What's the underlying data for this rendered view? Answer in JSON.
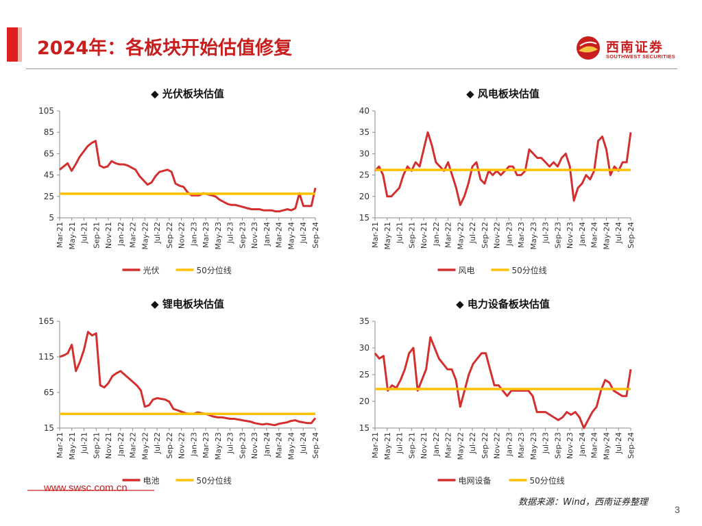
{
  "header": {
    "title": "2024年：各板块开始估值修复",
    "logo_name": "西南证券",
    "logo_sub": "SOUTHWEST SECURITIES"
  },
  "footer": {
    "url": "www.swsc.com.cn",
    "source": "数据来源：Wind，西南证券整理",
    "page": "3"
  },
  "colors": {
    "series": "#d32f2f",
    "median": "#ffc000",
    "title_red": "#c81e1e"
  },
  "chart_data": [
    {
      "type": "line",
      "title": "◆ 光伏板块估值",
      "ylim": [
        5,
        105
      ],
      "yticks": [
        5,
        25,
        45,
        65,
        85,
        105
      ],
      "xticks": [
        "Mar-21",
        "May-21",
        "Jul-21",
        "Sep-21",
        "Nov-21",
        "Jan-22",
        "Mar-22",
        "May-22",
        "Jul-22",
        "Sep-22",
        "Nov-22",
        "Jan-23",
        "Mar-23",
        "May-23",
        "Jul-23",
        "Sep-23",
        "Nov-23",
        "Jan-24",
        "Mar-24",
        "May-24",
        "Jul-24",
        "Sep-24"
      ],
      "series": [
        {
          "name": "光伏",
          "values": [
            50,
            53,
            56,
            49,
            55,
            62,
            67,
            72,
            75,
            77,
            54,
            52,
            53,
            58,
            56,
            55,
            55,
            54,
            52,
            50,
            44,
            40,
            36,
            38,
            44,
            48,
            49,
            50,
            48,
            37,
            35,
            34,
            29,
            26,
            26,
            26,
            28,
            27,
            26,
            25,
            22,
            20,
            18,
            17,
            17,
            16,
            15,
            14,
            13,
            13,
            13,
            12,
            12,
            12,
            11,
            11,
            12,
            13,
            12,
            14,
            28,
            16,
            16,
            16,
            33
          ]
        },
        {
          "name": "50分位线",
          "values": [
            27.5,
            27.5
          ]
        }
      ]
    },
    {
      "type": "line",
      "title": "◆ 风电板块估值",
      "ylim": [
        15,
        40
      ],
      "yticks": [
        15,
        20,
        25,
        30,
        35,
        40
      ],
      "xticks": [
        "Mar-21",
        "May-21",
        "Jul-21",
        "Sep-21",
        "Nov-21",
        "Jan-22",
        "Mar-22",
        "May-22",
        "Jul-22",
        "Sep-22",
        "Nov-22",
        "Jan-23",
        "Mar-23",
        "May-23",
        "Jul-23",
        "Sep-23",
        "Nov-23",
        "Jan-24",
        "Mar-24",
        "May-24",
        "Jul-24",
        "Sep-24"
      ],
      "series": [
        {
          "name": "风电",
          "values": [
            26,
            27,
            25,
            20,
            20,
            21,
            22,
            25,
            27,
            26,
            28,
            27,
            31,
            35,
            32,
            28,
            27,
            26,
            28,
            25,
            22,
            18,
            20,
            23,
            27,
            28,
            24,
            23,
            26,
            25,
            26,
            25,
            26,
            27,
            27,
            25,
            25,
            26,
            31,
            30,
            29,
            29,
            28,
            27,
            28,
            27,
            29,
            30,
            27,
            19,
            22,
            23,
            25,
            24,
            26,
            33,
            34,
            31,
            25,
            27,
            26,
            28,
            28,
            35
          ]
        },
        {
          "name": "50分位线",
          "values": [
            26.2,
            26.2
          ]
        }
      ]
    },
    {
      "type": "line",
      "title": "◆ 锂电板块估值",
      "ylim": [
        15,
        165
      ],
      "yticks": [
        15,
        65,
        115,
        165
      ],
      "xticks": [
        "Mar-21",
        "May-21",
        "Jul-21",
        "Sep-21",
        "Nov-21",
        "Jan-22",
        "Mar-22",
        "May-22",
        "Jul-22",
        "Sep-22",
        "Nov-22",
        "Jan-23",
        "Mar-23",
        "May-23",
        "Jul-23",
        "Sep-23",
        "Nov-23",
        "Jan-24",
        "Mar-24",
        "May-24",
        "Jul-24",
        "Sep-24"
      ],
      "series": [
        {
          "name": "电池",
          "values": [
            115,
            117,
            120,
            132,
            95,
            108,
            125,
            150,
            145,
            148,
            75,
            72,
            78,
            88,
            92,
            95,
            90,
            85,
            80,
            75,
            68,
            45,
            47,
            55,
            57,
            56,
            55,
            52,
            42,
            40,
            38,
            36,
            35,
            35,
            37,
            36,
            35,
            33,
            31,
            30,
            30,
            29,
            28,
            28,
            27,
            26,
            25,
            24,
            22,
            21,
            20,
            21,
            20,
            19,
            21,
            22,
            23,
            25,
            26,
            24,
            23,
            22,
            22,
            29
          ]
        },
        {
          "name": "50分位线",
          "values": [
            35,
            35
          ]
        }
      ]
    },
    {
      "type": "line",
      "title": "◆ 电力设备板块估值",
      "ylim": [
        15,
        35
      ],
      "yticks": [
        15,
        20,
        25,
        30,
        35
      ],
      "xticks": [
        "Mar-21",
        "May-21",
        "Jul-21",
        "Sep-21",
        "Nov-21",
        "Jan-22",
        "Mar-22",
        "May-22",
        "Jul-22",
        "Sep-22",
        "Nov-22",
        "Jan-23",
        "Mar-23",
        "May-23",
        "Jul-23",
        "Sep-23",
        "Nov-23",
        "Jan-24",
        "Mar-24",
        "May-24",
        "Jul-24",
        "Sep-24"
      ],
      "series": [
        {
          "name": "电网设备",
          "values": [
            29,
            28,
            28.5,
            22,
            23,
            22.5,
            24,
            26,
            29,
            30,
            22,
            24,
            26,
            32,
            30,
            28,
            27,
            26,
            26,
            24,
            19,
            22,
            25,
            27,
            28,
            29,
            29,
            26,
            23,
            23,
            22,
            21,
            22,
            22,
            22,
            22,
            22,
            21,
            18,
            18,
            18,
            17.5,
            17,
            16.5,
            17,
            18,
            17.5,
            18,
            17,
            15,
            16.5,
            18,
            19,
            22,
            24,
            23.5,
            22,
            21.5,
            21,
            21,
            26
          ]
        },
        {
          "name": "50分位线",
          "values": [
            22.3,
            22.3
          ]
        }
      ]
    }
  ]
}
